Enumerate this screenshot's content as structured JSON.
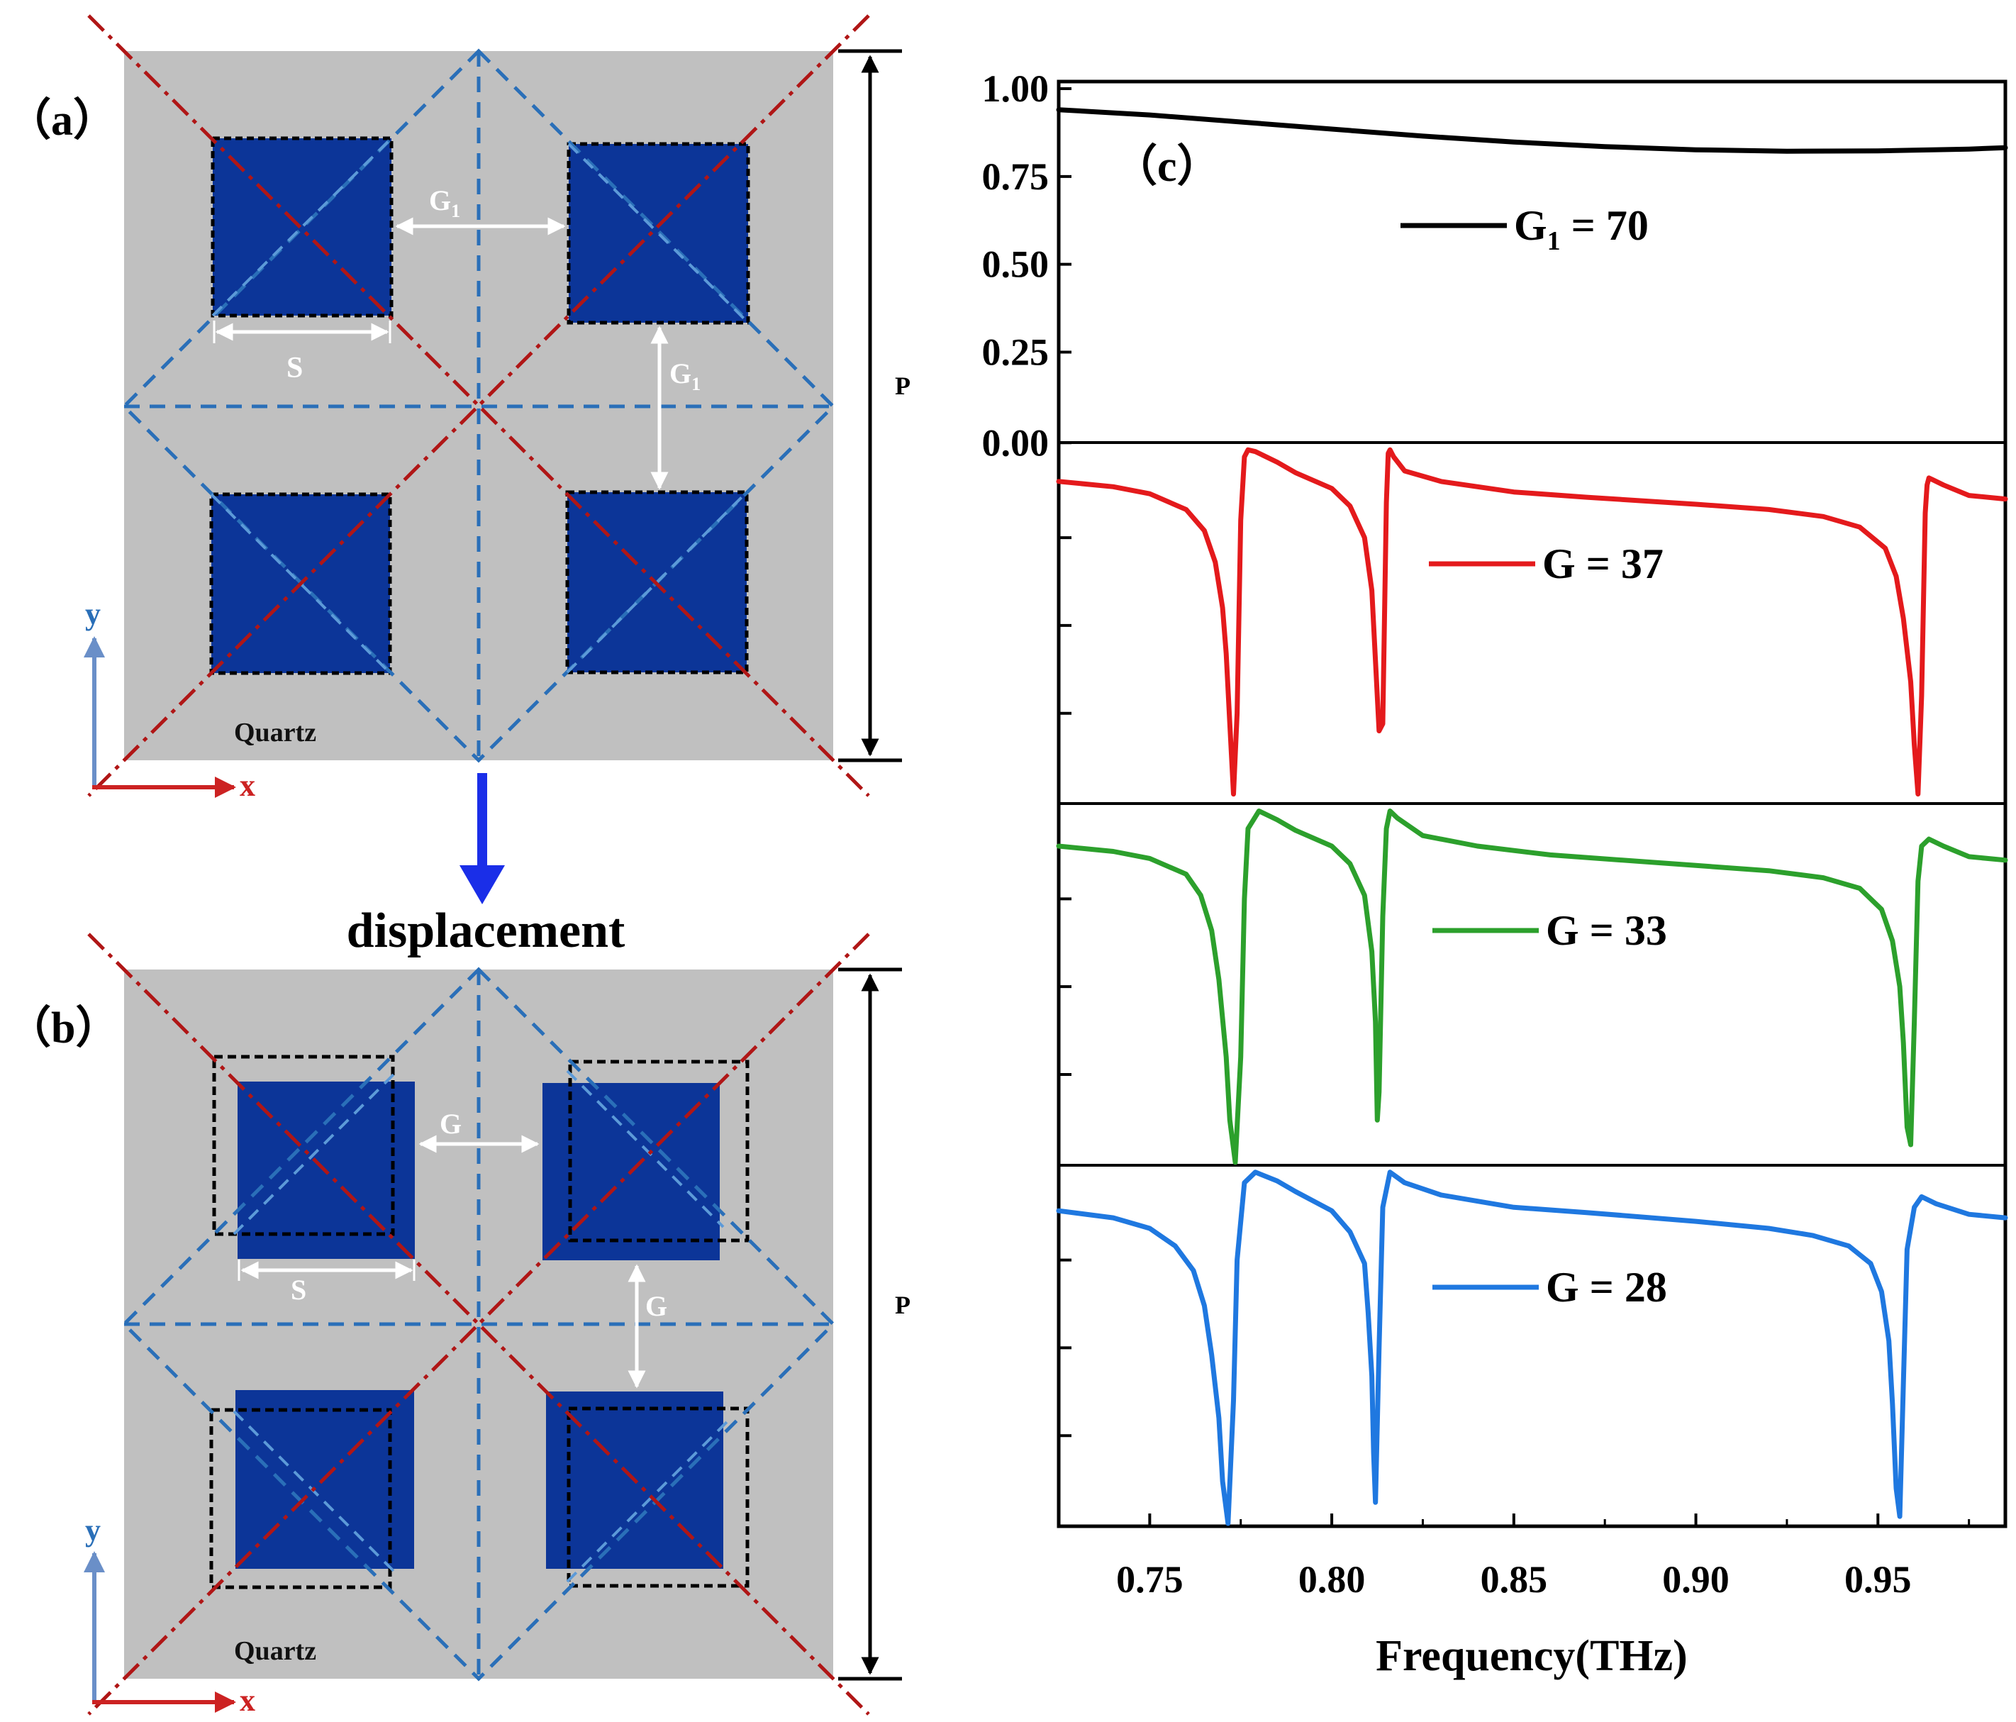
{
  "panel_a": {
    "label": "（a）",
    "gap_label": "G",
    "gap_sub": "1",
    "side_label": "S",
    "period_label": "P",
    "substrate_label": "Quartz",
    "axis_y": "y",
    "axis_x": "x"
  },
  "arrow_caption": "displacement",
  "panel_b": {
    "label": "（b）",
    "gap_label": "G",
    "side_label": "S",
    "period_label": "P",
    "substrate_label": "Quartz",
    "axis_y": "y",
    "axis_x": "x"
  },
  "colors": {
    "substrate": "#c0c0c0",
    "patch": "#0c3598",
    "dash_blue": "#2a6fb8",
    "dash_red": "#b01616",
    "series_black": "#000000",
    "series_red": "#e41a1c",
    "series_green": "#2ca02c",
    "series_blue": "#1f78e0"
  },
  "chart_data": {
    "type": "line",
    "panel_label": "（c）",
    "xlabel": "Frequency(THz)",
    "ylabel": "",
    "xlim": [
      0.725,
      0.985
    ],
    "ylim": [
      0,
      1
    ],
    "xticks": [
      "0.75",
      "0.80",
      "0.85",
      "0.90",
      "0.95"
    ],
    "xtick_values": [
      0.75,
      0.8,
      0.85,
      0.9,
      0.95
    ],
    "yticks": [
      "1.00",
      "0.75",
      "0.50",
      "0.25",
      "0.00"
    ],
    "ytick_values": [
      1.0,
      0.75,
      0.5,
      0.25,
      0.0
    ],
    "series": [
      {
        "name": "G1 = 70",
        "legend_main": "G",
        "legend_sub": "1",
        "legend_value": " = 70",
        "color": "#000000",
        "x": [
          0.725,
          0.75,
          0.775,
          0.8,
          0.825,
          0.85,
          0.875,
          0.9,
          0.925,
          0.95,
          0.975,
          0.985
        ],
        "y": [
          0.94,
          0.925,
          0.905,
          0.885,
          0.865,
          0.848,
          0.835,
          0.826,
          0.822,
          0.823,
          0.828,
          0.832
        ]
      },
      {
        "name": "G = 37",
        "legend_main": "G",
        "legend_sub": "",
        "legend_value": " = 37",
        "color": "#e41a1c",
        "x": [
          0.725,
          0.74,
          0.75,
          0.76,
          0.765,
          0.768,
          0.77,
          0.771,
          0.772,
          0.773,
          0.774,
          0.775,
          0.776,
          0.777,
          0.779,
          0.785,
          0.79,
          0.8,
          0.805,
          0.809,
          0.811,
          0.812,
          0.813,
          0.814,
          0.815,
          0.8155,
          0.816,
          0.817,
          0.82,
          0.83,
          0.85,
          0.87,
          0.9,
          0.92,
          0.935,
          0.945,
          0.952,
          0.955,
          0.957,
          0.959,
          0.96,
          0.961,
          0.962,
          0.963,
          0.9635,
          0.964,
          0.965,
          0.968,
          0.975,
          0.985
        ],
        "y": [
          0.91,
          0.895,
          0.875,
          0.83,
          0.77,
          0.68,
          0.55,
          0.42,
          0.22,
          0.02,
          0.25,
          0.8,
          0.98,
          1.0,
          0.995,
          0.965,
          0.935,
          0.89,
          0.84,
          0.75,
          0.6,
          0.4,
          0.2,
          0.22,
          0.85,
          0.99,
          1.0,
          0.98,
          0.94,
          0.91,
          0.88,
          0.865,
          0.845,
          0.83,
          0.81,
          0.78,
          0.72,
          0.64,
          0.52,
          0.34,
          0.16,
          0.02,
          0.3,
          0.82,
          0.9,
          0.92,
          0.915,
          0.9,
          0.87,
          0.86
        ]
      },
      {
        "name": "G = 33",
        "legend_main": "G",
        "legend_sub": "",
        "legend_value": " = 33",
        "color": "#2ca02c",
        "x": [
          0.725,
          0.74,
          0.75,
          0.76,
          0.764,
          0.767,
          0.769,
          0.771,
          0.772,
          0.7735,
          0.775,
          0.776,
          0.777,
          0.78,
          0.785,
          0.79,
          0.8,
          0.805,
          0.809,
          0.811,
          0.812,
          0.8125,
          0.813,
          0.814,
          0.815,
          0.816,
          0.818,
          0.825,
          0.84,
          0.86,
          0.9,
          0.92,
          0.935,
          0.945,
          0.951,
          0.954,
          0.956,
          0.957,
          0.958,
          0.959,
          0.96,
          0.961,
          0.962,
          0.964,
          0.968,
          0.975,
          0.985
        ],
        "y": [
          0.9,
          0.885,
          0.865,
          0.82,
          0.76,
          0.66,
          0.52,
          0.3,
          0.12,
          0.0,
          0.3,
          0.75,
          0.95,
          1.0,
          0.975,
          0.945,
          0.9,
          0.85,
          0.76,
          0.6,
          0.4,
          0.12,
          0.2,
          0.7,
          0.95,
          1.0,
          0.98,
          0.93,
          0.9,
          0.875,
          0.845,
          0.83,
          0.81,
          0.78,
          0.72,
          0.63,
          0.5,
          0.34,
          0.1,
          0.05,
          0.4,
          0.8,
          0.9,
          0.92,
          0.9,
          0.87,
          0.86
        ]
      },
      {
        "name": "G = 28",
        "legend_main": "G",
        "legend_sub": "",
        "legend_value": " = 28",
        "color": "#1f78e0",
        "x": [
          0.725,
          0.74,
          0.75,
          0.757,
          0.762,
          0.765,
          0.767,
          0.769,
          0.77,
          0.7715,
          0.773,
          0.774,
          0.776,
          0.779,
          0.785,
          0.79,
          0.8,
          0.805,
          0.809,
          0.81,
          0.811,
          0.8115,
          0.812,
          0.813,
          0.814,
          0.816,
          0.82,
          0.83,
          0.85,
          0.87,
          0.9,
          0.92,
          0.932,
          0.942,
          0.948,
          0.951,
          0.953,
          0.954,
          0.955,
          0.956,
          0.957,
          0.958,
          0.96,
          0.962,
          0.966,
          0.975,
          0.985
        ],
        "y": [
          0.89,
          0.87,
          0.84,
          0.79,
          0.72,
          0.62,
          0.48,
          0.3,
          0.12,
          0.0,
          0.35,
          0.75,
          0.97,
          1.0,
          0.975,
          0.945,
          0.89,
          0.83,
          0.74,
          0.6,
          0.42,
          0.2,
          0.06,
          0.5,
          0.9,
          1.0,
          0.97,
          0.935,
          0.9,
          0.885,
          0.86,
          0.84,
          0.82,
          0.79,
          0.74,
          0.66,
          0.52,
          0.34,
          0.1,
          0.02,
          0.4,
          0.78,
          0.9,
          0.93,
          0.91,
          0.88,
          0.87
        ]
      }
    ]
  }
}
